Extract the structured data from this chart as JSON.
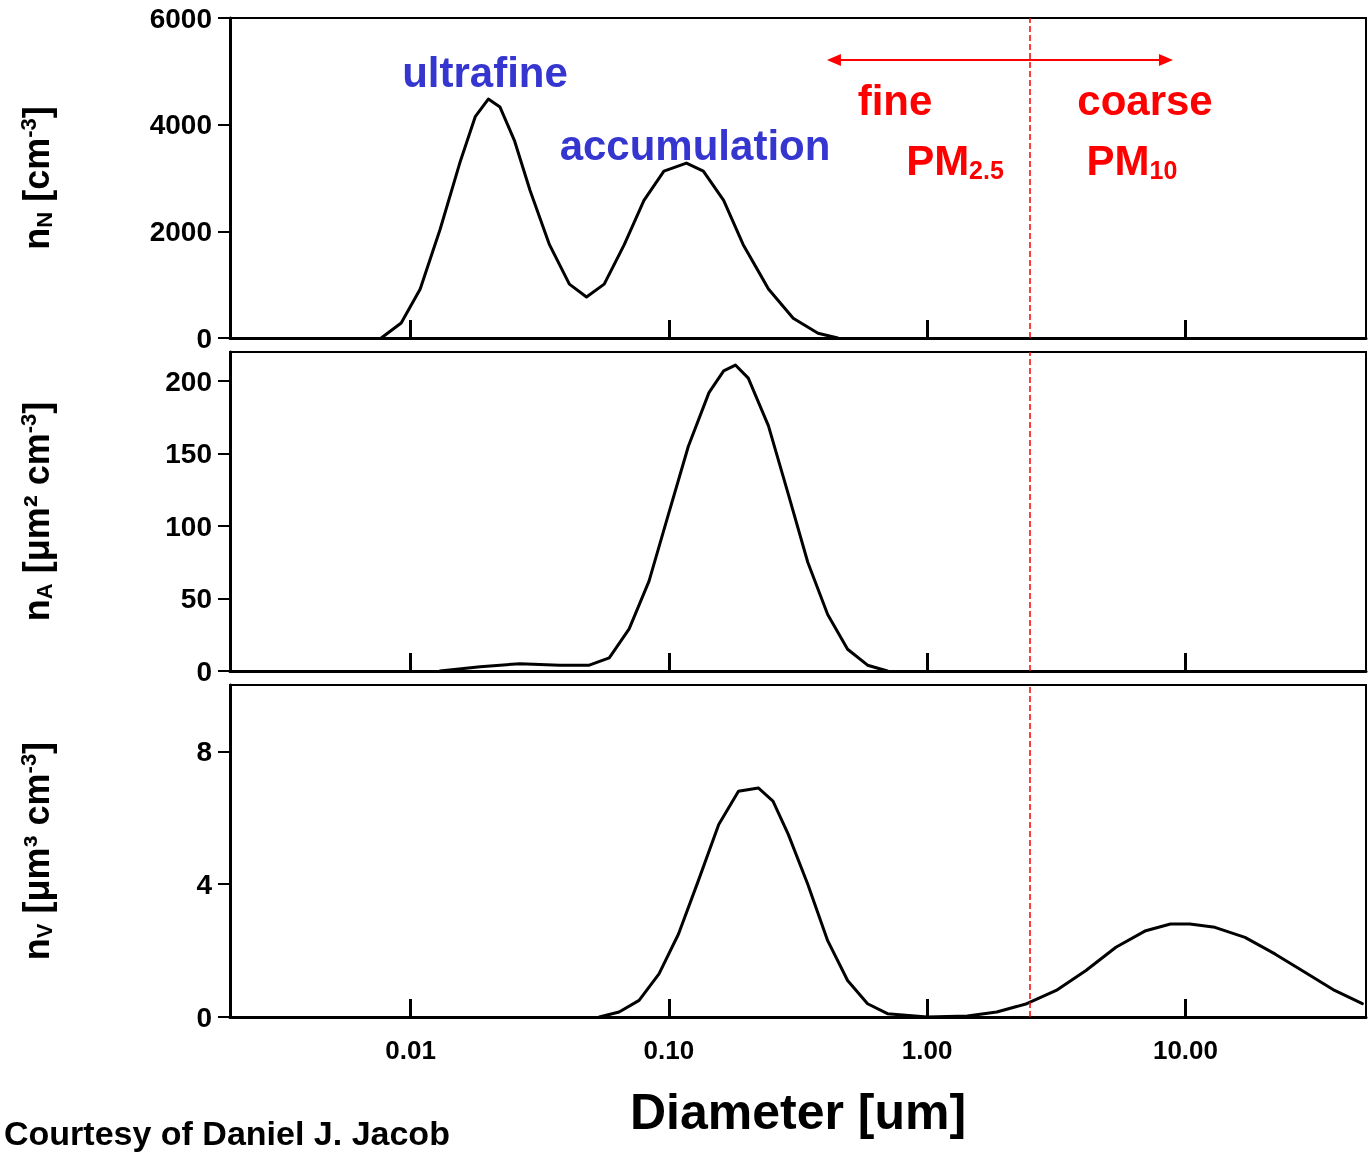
{
  "chart_data": [
    {
      "type": "line",
      "log": "x",
      "tick_labels": "y",
      "ylabel": "n$_{N}$ [cm$^{-3}$]",
      "color": "#000000",
      "xlim": [
        0.002,
        50
      ],
      "xticks": [
        {
          "value": 0.01,
          "label": null
        },
        {
          "value": 0.1,
          "label": null
        },
        {
          "value": 1,
          "label": null
        },
        {
          "value": 10,
          "label": null
        }
      ],
      "ylim": [
        0,
        6000
      ],
      "yticks": [
        0,
        2000,
        4000,
        6000
      ],
      "x": [
        0.0077,
        0.0092,
        0.0109,
        0.013,
        0.0156,
        0.0178,
        0.02,
        0.0222,
        0.0253,
        0.029,
        0.0345,
        0.0412,
        0.048,
        0.0562,
        0.0672,
        0.0801,
        0.0957,
        0.117,
        0.136,
        0.163,
        0.194,
        0.243,
        0.303,
        0.378,
        0.451
      ],
      "values": [
        0,
        280,
        920,
        2030,
        3320,
        4150,
        4480,
        4330,
        3690,
        2770,
        1750,
        1010,
        770,
        1010,
        1750,
        2580,
        3130,
        3280,
        3130,
        2580,
        1750,
        920,
        370,
        90,
        0
      ],
      "ref_lines": [
        {
          "axis": "x",
          "value": 2.5,
          "color": "#ff0000",
          "line_style": "dashed"
        }
      ],
      "annotations": [
        "ultrafine",
        "accumulation",
        "fine",
        "PM$_{2.5}$",
        "coarse",
        "PM$_{10}$"
      ]
    },
    {
      "type": "line",
      "log": "x",
      "tick_labels": "y",
      "ylabel": "n$_{A}$ [μm² cm$^{-3}$]",
      "color": "#000000",
      "xlim": [
        0.002,
        50
      ],
      "xticks": [
        {
          "value": 0.01,
          "label": null
        },
        {
          "value": 0.1,
          "label": null
        },
        {
          "value": 1,
          "label": null
        },
        {
          "value": 10,
          "label": null
        }
      ],
      "ylim": [
        0,
        220
      ],
      "yticks": [
        0,
        50,
        100,
        150,
        200
      ],
      "x": [
        0.013,
        0.0186,
        0.0265,
        0.0378,
        0.0492,
        0.0588,
        0.0702,
        0.0838,
        0.1,
        0.119,
        0.143,
        0.163,
        0.181,
        0.203,
        0.243,
        0.29,
        0.345,
        0.412,
        0.492,
        0.588,
        0.702
      ],
      "values": [
        0,
        3,
        5,
        4,
        4,
        9,
        29,
        62,
        109,
        155,
        192,
        207,
        211,
        202,
        169,
        122,
        75,
        39,
        15,
        4,
        0
      ],
      "ref_lines": [
        {
          "axis": "x",
          "value": 2.5,
          "color": "#ff0000",
          "line_style": "dashed"
        }
      ]
    },
    {
      "type": "line",
      "log": "x",
      "ylabel": "n$_{V}$ [μm³ cm$^{-3}$]",
      "xlabel": "Diameter [um]",
      "color": "#000000",
      "xlim": [
        0.002,
        50
      ],
      "xticks": [
        {
          "value": 0.01,
          "label": "0.01"
        },
        {
          "value": 0.1,
          "label": "0.10"
        },
        {
          "value": 1,
          "label": "1.00"
        },
        {
          "value": 10,
          "label": "10.00"
        }
      ],
      "ylim": [
        0,
        10
      ],
      "yticks": [
        0,
        4,
        8
      ],
      "x": [
        0.0538,
        0.0642,
        0.0767,
        0.0916,
        0.109,
        0.13,
        0.156,
        0.186,
        0.222,
        0.253,
        0.29,
        0.345,
        0.412,
        0.492,
        0.588,
        0.702,
        1.0,
        1.43,
        1.86,
        2.43,
        3.16,
        4.12,
        5.38,
        7.02,
        8.75,
        10.4,
        13.0,
        17.0,
        22.2,
        29.0,
        37.8,
        48.4
      ],
      "values": [
        0,
        0.15,
        0.5,
        1.3,
        2.5,
        4.1,
        5.8,
        6.8,
        6.9,
        6.5,
        5.5,
        4.0,
        2.3,
        1.1,
        0.4,
        0.1,
        0,
        0.03,
        0.15,
        0.4,
        0.8,
        1.4,
        2.1,
        2.6,
        2.8,
        2.8,
        2.7,
        2.4,
        1.9,
        1.35,
        0.8,
        0.4
      ],
      "ref_lines": [
        {
          "axis": "x",
          "value": 2.5,
          "color": "#ff0000",
          "line_style": "dashed"
        }
      ],
      "annotations": [
        "Courtesy of Daniel J. Jacob"
      ]
    }
  ]
}
